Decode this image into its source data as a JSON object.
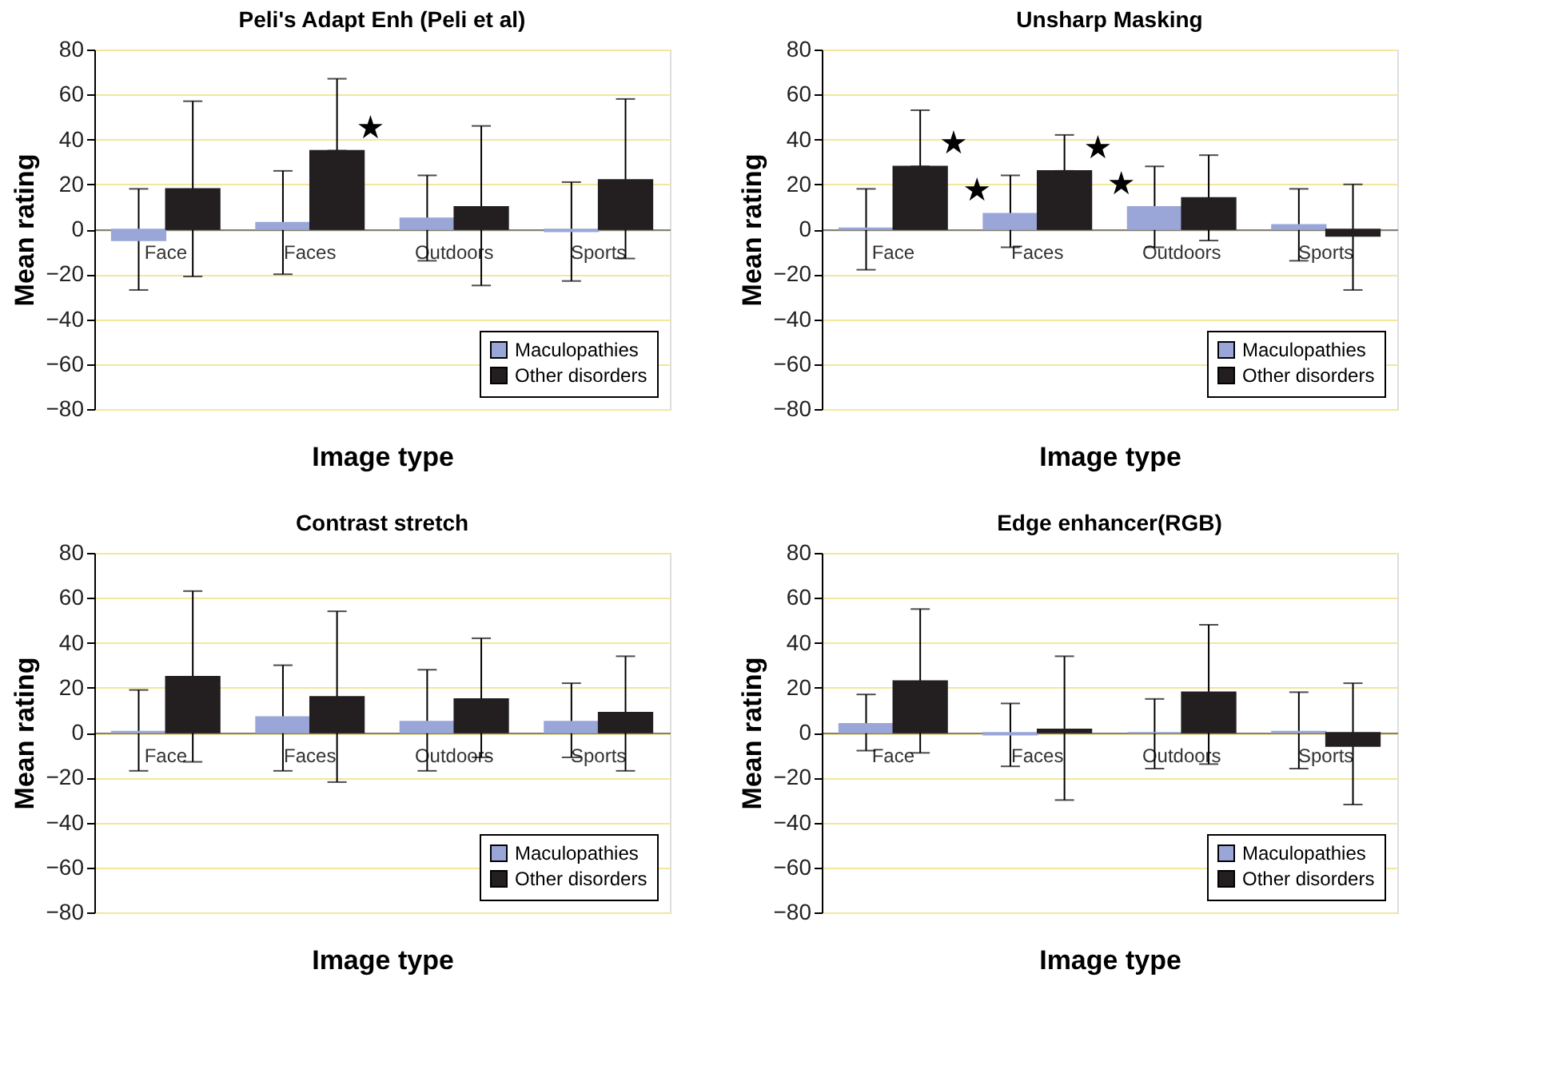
{
  "chart_data": [
    {
      "type": "bar",
      "title": "Peli's Adapt Enh (Peli et al)",
      "xlabel": "Image type",
      "ylabel": "Mean rating",
      "categories": [
        "Face",
        "Faces",
        "Outdoors",
        "Sports"
      ],
      "series": [
        {
          "name": "Maculopathies",
          "color": "#9aa6d8",
          "values": [
            -5,
            3,
            5,
            -1
          ],
          "errors": [
            [
              -27,
              18
            ],
            [
              -20,
              26
            ],
            [
              -14,
              24
            ],
            [
              -23,
              21
            ]
          ]
        },
        {
          "name": "Other disorders",
          "color": "#231f20",
          "values": [
            18,
            35,
            10,
            22
          ],
          "errors": [
            [
              -21,
              57
            ],
            [
              35,
              67
            ],
            [
              -25,
              46
            ],
            [
              -13,
              58
            ]
          ]
        }
      ],
      "ylim": [
        -80,
        80
      ],
      "yticks": [
        -80,
        -60,
        -40,
        -20,
        0,
        20,
        40,
        60,
        80
      ],
      "grid": "y",
      "legend": "bottom right",
      "annotations": [
        {
          "text": "★",
          "x": "Faces",
          "y": 35
        }
      ]
    },
    {
      "type": "bar",
      "title": "Unsharp Masking",
      "xlabel": "Image type",
      "ylabel": "Mean rating",
      "categories": [
        "Face",
        "Faces",
        "Outdoors",
        "Sports"
      ],
      "series": [
        {
          "name": "Maculopathies",
          "color": "#9aa6d8",
          "values": [
            0.5,
            7,
            10,
            2
          ],
          "errors": [
            [
              -18,
              18
            ],
            [
              -8,
              24
            ],
            [
              -8,
              28
            ],
            [
              -14,
              18
            ]
          ]
        },
        {
          "name": "Other disorders",
          "color": "#231f20",
          "values": [
            28,
            26,
            14,
            -3
          ],
          "errors": [
            [
              28,
              53
            ],
            [
              26,
              42
            ],
            [
              -5,
              33
            ],
            [
              -27,
              20
            ]
          ]
        }
      ],
      "ylim": [
        -80,
        80
      ],
      "yticks": [
        -80,
        -60,
        -40,
        -20,
        0,
        20,
        40,
        60,
        80
      ],
      "grid": "y",
      "legend": "bottom right",
      "annotations": [
        {
          "text": "★",
          "x": "Face",
          "y": 28
        },
        {
          "text": "★",
          "x": "Faces",
          "y": 7
        },
        {
          "text": "★",
          "x": "Faces",
          "y": 26
        },
        {
          "text": "★",
          "x": "Outdoors",
          "y": 10
        }
      ]
    },
    {
      "type": "bar",
      "title": "Contrast stretch",
      "xlabel": "Image type",
      "ylabel": "Mean rating",
      "categories": [
        "Face",
        "Faces",
        "Outdoors",
        "Sports"
      ],
      "series": [
        {
          "name": "Maculopathies",
          "color": "#9aa6d8",
          "values": [
            0.5,
            7,
            5,
            5
          ],
          "errors": [
            [
              -17,
              19
            ],
            [
              -17,
              30
            ],
            [
              -17,
              28
            ],
            [
              -11,
              22
            ]
          ]
        },
        {
          "name": "Other disorders",
          "color": "#231f20",
          "values": [
            25,
            16,
            15,
            9
          ],
          "errors": [
            [
              -13,
              63
            ],
            [
              -22,
              54
            ],
            [
              -11,
              42
            ],
            [
              -17,
              34
            ]
          ]
        }
      ],
      "ylim": [
        -80,
        80
      ],
      "yticks": [
        -80,
        -60,
        -40,
        -20,
        0,
        20,
        40,
        60,
        80
      ],
      "grid": "y",
      "legend": "bottom right"
    },
    {
      "type": "bar",
      "title": "Edge enhancer(RGB)",
      "xlabel": "Image type",
      "ylabel": "Mean rating",
      "categories": [
        "Face",
        "Faces",
        "Outdoors",
        "Sports"
      ],
      "series": [
        {
          "name": "Maculopathies",
          "color": "#9aa6d8",
          "values": [
            4,
            -1,
            0,
            0.5
          ],
          "errors": [
            [
              -8,
              17
            ],
            [
              -15,
              13
            ],
            [
              -16,
              15
            ],
            [
              -16,
              18
            ]
          ]
        },
        {
          "name": "Other disorders",
          "color": "#231f20",
          "values": [
            23,
            1.5,
            18,
            -6
          ],
          "errors": [
            [
              -9,
              55
            ],
            [
              -30,
              34
            ],
            [
              -14,
              48
            ],
            [
              -32,
              22
            ]
          ]
        }
      ],
      "ylim": [
        -80,
        80
      ],
      "yticks": [
        -80,
        -60,
        -40,
        -20,
        0,
        20,
        40,
        60,
        80
      ],
      "grid": "y",
      "legend": "bottom right"
    }
  ]
}
